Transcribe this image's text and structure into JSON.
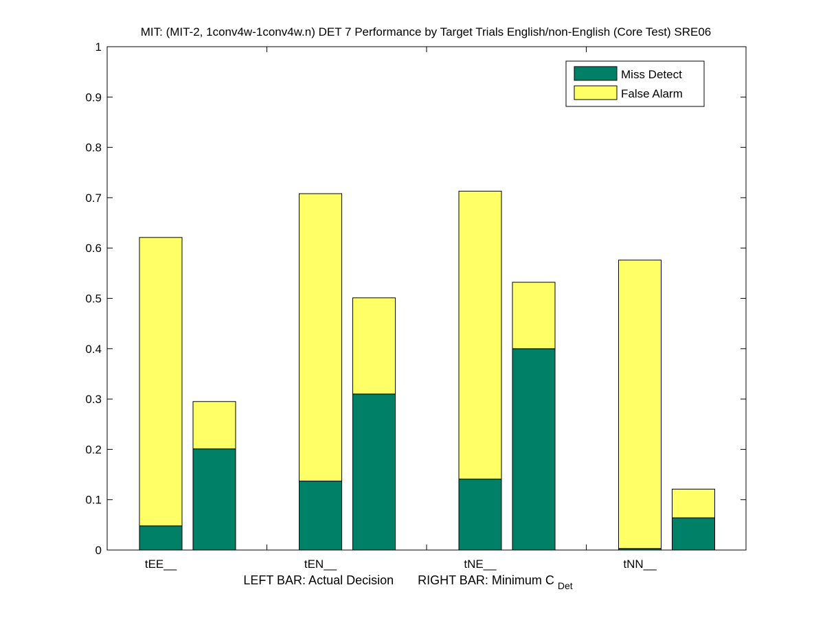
{
  "chart_data": {
    "type": "bar",
    "stacked": true,
    "title": "MIT: (MIT-2, 1conv4w-1conv4w.n) DET 7 Performance by Target Trials English/non-English (Core Test) SRE06",
    "xlabel": {
      "left": "LEFT BAR: Actual Decision",
      "right_prefix": "RIGHT BAR: Minimum C",
      "right_subscript": "Det"
    },
    "ylabel": "",
    "ylim": [
      0,
      1
    ],
    "yticks": [
      "0",
      "0.1",
      "0.2",
      "0.3",
      "0.4",
      "0.5",
      "0.6",
      "0.7",
      "0.8",
      "0.9",
      "1"
    ],
    "categories": [
      "tEE__",
      "tEN__",
      "tNE__",
      "tNN__"
    ],
    "grid": false,
    "legend_position": "top-right",
    "colors": {
      "miss": "#008066",
      "false_alarm": "#ffff66",
      "edge": "#000000"
    },
    "series": [
      {
        "name": "Miss Detect",
        "role": "miss",
        "actual": [
          0.048,
          0.137,
          0.141,
          0.003
        ],
        "minimum": [
          0.201,
          0.31,
          0.4,
          0.064
        ]
      },
      {
        "name": "False Alarm",
        "role": "false_alarm",
        "actual": [
          0.573,
          0.571,
          0.572,
          0.573
        ],
        "minimum": [
          0.094,
          0.191,
          0.132,
          0.057
        ]
      }
    ]
  }
}
